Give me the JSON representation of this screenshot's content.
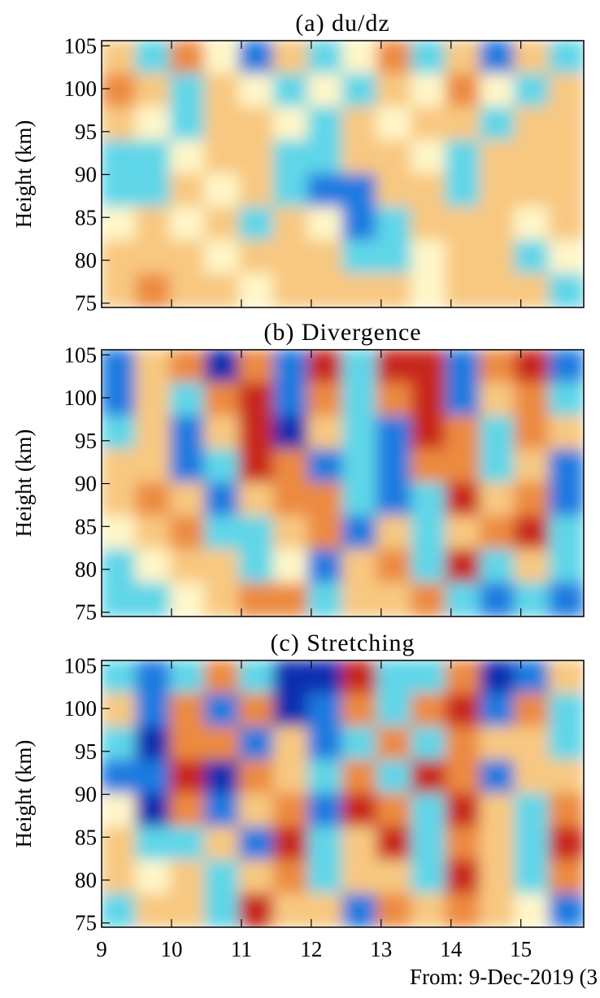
{
  "chart_data": [
    {
      "type": "heatmap",
      "title": "(a) du/dz",
      "ylabel": "Height (km)",
      "xlim": [
        9,
        15.9
      ],
      "xticks": [
        9,
        10,
        11,
        12,
        13,
        14,
        15
      ],
      "show_xtick_labels": false,
      "ylim": [
        74.5,
        105.6
      ],
      "yticks": [
        75,
        80,
        85,
        90,
        95,
        100,
        105
      ],
      "colors": [
        "#0a2fb0",
        "#1e7ae0",
        "#5fd6e8",
        "#fff6c8",
        "#f8c880",
        "#ec8a40",
        "#c8281c"
      ],
      "zlim": [
        -3,
        3
      ],
      "z": [
        [
          1,
          -1,
          2,
          0,
          -2,
          1,
          -1,
          0,
          2,
          -1,
          1,
          -2,
          1,
          -1
        ],
        [
          2,
          1,
          -1,
          1,
          0,
          -1,
          0,
          -1,
          1,
          0,
          2,
          0,
          -1,
          1
        ],
        [
          1,
          0,
          -1,
          1,
          1,
          0,
          -1,
          1,
          0,
          1,
          1,
          -1,
          1,
          1
        ],
        [
          -1,
          -1,
          0,
          1,
          1,
          -1,
          -1,
          1,
          1,
          0,
          -1,
          1,
          1,
          1
        ],
        [
          -1,
          -1,
          1,
          0,
          1,
          -1,
          -2,
          -2,
          1,
          1,
          -1,
          1,
          1,
          1
        ],
        [
          0,
          1,
          0,
          1,
          -1,
          1,
          0,
          -2,
          -1,
          1,
          1,
          1,
          0,
          1
        ],
        [
          1,
          1,
          1,
          0,
          1,
          1,
          1,
          -1,
          -1,
          0,
          1,
          1,
          -1,
          0
        ],
        [
          1,
          2,
          1,
          1,
          0,
          1,
          1,
          1,
          1,
          0,
          1,
          1,
          1,
          -1
        ]
      ]
    },
    {
      "type": "heatmap",
      "title": "(b) Divergence",
      "ylabel": "Height (km)",
      "xlim": [
        9,
        15.9
      ],
      "xticks": [
        9,
        10,
        11,
        12,
        13,
        14,
        15
      ],
      "show_xtick_labels": false,
      "ylim": [
        74.5,
        105.6
      ],
      "yticks": [
        75,
        80,
        85,
        90,
        95,
        100,
        105
      ],
      "colors": [
        "#0a2fb0",
        "#1e7ae0",
        "#5fd6e8",
        "#fff6c8",
        "#f8c880",
        "#ec8a40",
        "#c8281c"
      ],
      "zlim": [
        -3,
        3
      ],
      "z": [
        [
          -2,
          1,
          2,
          -3,
          2,
          -2,
          3,
          -1,
          3,
          3,
          -2,
          2,
          3,
          -2
        ],
        [
          -2,
          1,
          -1,
          2,
          3,
          -2,
          2,
          -1,
          2,
          3,
          -2,
          1,
          2,
          -1
        ],
        [
          -1,
          1,
          -2,
          1,
          3,
          -3,
          1,
          -1,
          -2,
          3,
          2,
          -1,
          2,
          1
        ],
        [
          1,
          1,
          -2,
          -1,
          3,
          2,
          -2,
          -1,
          -2,
          2,
          2,
          -1,
          1,
          -2
        ],
        [
          1,
          2,
          1,
          -2,
          1,
          2,
          2,
          -1,
          -2,
          -1,
          3,
          1,
          2,
          -2
        ],
        [
          0,
          1,
          2,
          -1,
          -1,
          1,
          2,
          -2,
          1,
          -1,
          1,
          2,
          3,
          -1
        ],
        [
          -1,
          0,
          1,
          1,
          -1,
          0,
          -2,
          1,
          2,
          -1,
          3,
          -1,
          1,
          -1
        ],
        [
          -1,
          -1,
          0,
          1,
          2,
          2,
          -1,
          1,
          1,
          2,
          -1,
          -2,
          -1,
          -2
        ]
      ]
    },
    {
      "type": "heatmap",
      "title": "(c) Stretching",
      "ylabel": "Height (km)",
      "xlim": [
        9,
        15.9
      ],
      "xticks": [
        9,
        10,
        11,
        12,
        13,
        14,
        15
      ],
      "show_xtick_labels": true,
      "ylim": [
        74.5,
        105.6
      ],
      "yticks": [
        75,
        80,
        85,
        90,
        95,
        100,
        105
      ],
      "colors": [
        "#0a2fb0",
        "#1e7ae0",
        "#5fd6e8",
        "#fff6c8",
        "#f8c880",
        "#ec8a40",
        "#c8281c"
      ],
      "zlim": [
        -3,
        3
      ],
      "z": [
        [
          -1,
          -2,
          -1,
          2,
          -1,
          -3,
          -3,
          3,
          -1,
          -1,
          2,
          -3,
          -2,
          1
        ],
        [
          1,
          -2,
          2,
          -2,
          2,
          -3,
          -2,
          2,
          -1,
          2,
          3,
          -2,
          2,
          -1
        ],
        [
          -1,
          -3,
          2,
          2,
          -2,
          1,
          -2,
          -1,
          2,
          -1,
          2,
          1,
          1,
          -1
        ],
        [
          -2,
          -2,
          3,
          -3,
          2,
          1,
          -1,
          2,
          -1,
          3,
          2,
          -2,
          1,
          1
        ],
        [
          0,
          -3,
          2,
          -2,
          1,
          2,
          -2,
          3,
          2,
          -1,
          3,
          1,
          -1,
          2
        ],
        [
          1,
          -1,
          -1,
          1,
          -2,
          3,
          -1,
          1,
          3,
          -1,
          2,
          1,
          -1,
          3
        ],
        [
          1,
          0,
          1,
          -1,
          1,
          2,
          -1,
          1,
          1,
          -1,
          3,
          1,
          -1,
          2
        ],
        [
          -1,
          1,
          1,
          -1,
          3,
          1,
          1,
          -2,
          2,
          1,
          2,
          1,
          0,
          -2
        ]
      ]
    }
  ],
  "footer": "From:  9-Dec-2019 (3"
}
